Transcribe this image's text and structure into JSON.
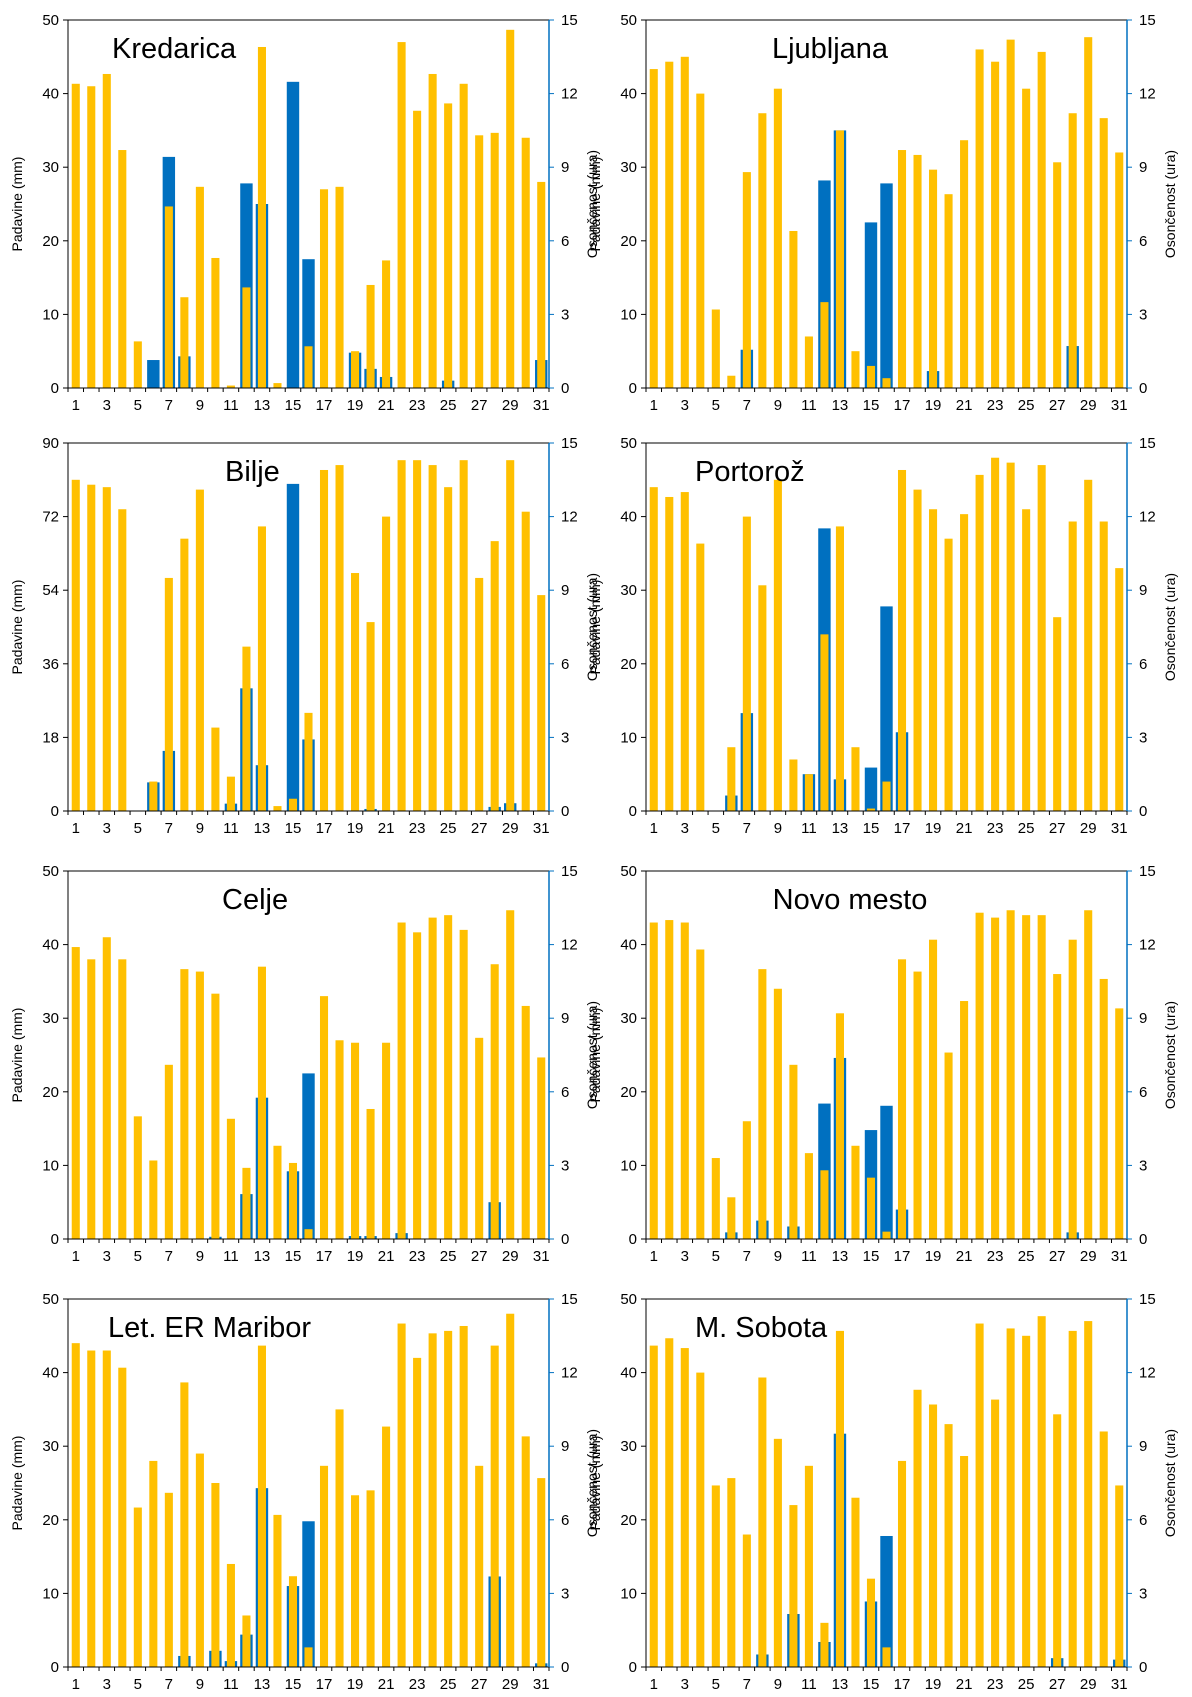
{
  "colors": {
    "precipitation": "#0070C0",
    "sunshine": "#FFC000",
    "frame": "#000000"
  },
  "chart_data": [
    {
      "type": "bar",
      "title": "Kredarica",
      "ylabel": "Padavine (mm)",
      "y2label": "Osončenost (ura)",
      "ylim": [
        0,
        50
      ],
      "yticks": [
        0,
        10,
        20,
        30,
        40,
        50
      ],
      "y2lim": [
        0,
        15
      ],
      "y2ticks": [
        0,
        3,
        6,
        9,
        12,
        15
      ],
      "x_ticks": [
        "1",
        "3",
        "5",
        "7",
        "9",
        "11",
        "13",
        "15",
        "17",
        "19",
        "21",
        "23",
        "25",
        "27",
        "29",
        "31"
      ],
      "series": [
        {
          "name": "Padavine",
          "axis": "left",
          "values": [
            0,
            0,
            0,
            0,
            0,
            3.8,
            31.4,
            4.3,
            0,
            0,
            0,
            27.8,
            25,
            0,
            41.6,
            17.5,
            0,
            0,
            4.8,
            2.6,
            1.5,
            0,
            0,
            0,
            1,
            0,
            0,
            0,
            0,
            0,
            3.8
          ]
        },
        {
          "name": "Osončenost",
          "axis": "right",
          "values": [
            12.4,
            12.3,
            12.8,
            9.7,
            1.9,
            0,
            7.4,
            3.7,
            8.2,
            5.3,
            0.1,
            4.1,
            13.9,
            0.2,
            0,
            1.7,
            8.1,
            8.2,
            1.5,
            4.2,
            5.2,
            14.1,
            11.3,
            12.8,
            11.6,
            12.4,
            10.3,
            10.4,
            14.6,
            10.2,
            8.4
          ]
        }
      ]
    },
    {
      "type": "bar",
      "title": "Ljubljana",
      "ylabel": "Padavine (mm)",
      "y2label": "Osončenost (ura)",
      "ylim": [
        0,
        50
      ],
      "yticks": [
        0,
        10,
        20,
        30,
        40,
        50
      ],
      "y2lim": [
        0,
        15
      ],
      "y2ticks": [
        0,
        3,
        6,
        9,
        12,
        15
      ],
      "x_ticks": [
        "1",
        "3",
        "5",
        "7",
        "9",
        "11",
        "13",
        "15",
        "17",
        "19",
        "21",
        "23",
        "25",
        "27",
        "29",
        "31"
      ],
      "series": [
        {
          "name": "Padavine",
          "axis": "left",
          "values": [
            0,
            0,
            0,
            0,
            0,
            0,
            5.2,
            0,
            0,
            0,
            0,
            28.2,
            35,
            0,
            22.5,
            27.8,
            0,
            0,
            2.3,
            0,
            0,
            0,
            0,
            0,
            0,
            0,
            0,
            5.7,
            0,
            0,
            0
          ]
        },
        {
          "name": "Osončenost",
          "axis": "right",
          "values": [
            13,
            13.3,
            13.5,
            12,
            3.2,
            0.5,
            8.8,
            11.2,
            12.2,
            6.4,
            2.1,
            3.5,
            10.5,
            1.5,
            0.9,
            0.4,
            9.7,
            9.5,
            8.9,
            7.9,
            10.1,
            13.8,
            13.3,
            14.2,
            12.2,
            13.7,
            9.2,
            11.2,
            14.3,
            11,
            9.6
          ]
        }
      ]
    },
    {
      "type": "bar",
      "title": "Bilje",
      "ylabel": "Padavine (mm)",
      "y2label": "Osončenost (ura)",
      "ylim": [
        0,
        90
      ],
      "yticks": [
        0,
        18,
        36,
        54,
        72,
        90
      ],
      "y2lim": [
        0,
        15
      ],
      "y2ticks": [
        0,
        3,
        6,
        9,
        12,
        15
      ],
      "x_ticks": [
        "1",
        "3",
        "5",
        "7",
        "9",
        "11",
        "13",
        "15",
        "17",
        "19",
        "21",
        "23",
        "25",
        "27",
        "29",
        "31"
      ],
      "series": [
        {
          "name": "Padavine",
          "axis": "left",
          "values": [
            0,
            0,
            0,
            0,
            0,
            7,
            14.7,
            0,
            0,
            0,
            1.8,
            30,
            11.2,
            0,
            80,
            17.5,
            0,
            0,
            0,
            0.5,
            0,
            0,
            0,
            0,
            0,
            0,
            0,
            1,
            1.9,
            0,
            0
          ]
        },
        {
          "name": "Osončenost",
          "axis": "right",
          "values": [
            13.5,
            13.3,
            13.2,
            12.3,
            0,
            1.2,
            9.5,
            11.1,
            13.1,
            3.4,
            1.4,
            6.7,
            11.6,
            0.2,
            0.5,
            4,
            13.9,
            14.1,
            9.7,
            7.7,
            12,
            14.3,
            14.3,
            14.1,
            13.2,
            14.3,
            9.5,
            11,
            14.3,
            12.2,
            8.8
          ]
        }
      ]
    },
    {
      "type": "bar",
      "title": "Portorož",
      "ylabel": "Padavine (mm)",
      "y2label": "Osončenost (ura)",
      "ylim": [
        0,
        50
      ],
      "yticks": [
        0,
        10,
        20,
        30,
        40,
        50
      ],
      "y2lim": [
        0,
        15
      ],
      "y2ticks": [
        0,
        3,
        6,
        9,
        12,
        15
      ],
      "x_ticks": [
        "1",
        "3",
        "5",
        "7",
        "9",
        "11",
        "13",
        "15",
        "17",
        "19",
        "21",
        "23",
        "25",
        "27",
        "29",
        "31"
      ],
      "series": [
        {
          "name": "Padavine",
          "axis": "left",
          "values": [
            0,
            0,
            0,
            0,
            0,
            2.1,
            13.3,
            0,
            0,
            0,
            5,
            38.4,
            4.3,
            0,
            5.9,
            27.8,
            10.7,
            0,
            0,
            0,
            0,
            0,
            0,
            0,
            0,
            0,
            0,
            0,
            0,
            0,
            0
          ]
        },
        {
          "name": "Osončenost",
          "axis": "right",
          "values": [
            13.2,
            12.8,
            13,
            10.9,
            0,
            2.6,
            12,
            9.2,
            13.5,
            2.1,
            1.5,
            7.2,
            11.6,
            2.6,
            0.1,
            1.2,
            13.9,
            13.1,
            12.3,
            11.1,
            12.1,
            13.7,
            14.4,
            14.2,
            12.3,
            14.1,
            7.9,
            11.8,
            13.5,
            11.8,
            9.9
          ]
        }
      ]
    },
    {
      "type": "bar",
      "title": "Celje",
      "ylabel": "Padavine (mm)",
      "y2label": "Osončenost (ura)",
      "ylim": [
        0,
        50
      ],
      "yticks": [
        0,
        10,
        20,
        30,
        40,
        50
      ],
      "y2lim": [
        0,
        15
      ],
      "y2ticks": [
        0,
        3,
        6,
        9,
        12,
        15
      ],
      "x_ticks": [
        "1",
        "3",
        "5",
        "7",
        "9",
        "11",
        "13",
        "15",
        "17",
        "19",
        "21",
        "23",
        "25",
        "27",
        "29",
        "31"
      ],
      "series": [
        {
          "name": "Padavine",
          "axis": "left",
          "values": [
            0,
            0,
            0,
            0,
            0,
            0,
            0,
            0,
            0,
            0.3,
            0,
            6.1,
            19.2,
            0,
            9.2,
            22.5,
            0,
            0,
            0.4,
            0.4,
            0,
            0.8,
            0,
            0,
            0,
            0,
            0,
            5,
            0,
            0,
            0
          ]
        },
        {
          "name": "Osončenost",
          "axis": "right",
          "values": [
            11.9,
            11.4,
            12.3,
            11.4,
            5,
            3.2,
            7.1,
            11,
            10.9,
            10,
            4.9,
            2.9,
            11.1,
            3.8,
            3.1,
            0.4,
            9.9,
            8.1,
            8,
            5.3,
            8,
            12.9,
            12.5,
            13.1,
            13.2,
            12.6,
            8.2,
            11.2,
            13.4,
            9.5,
            7.4
          ]
        }
      ]
    },
    {
      "type": "bar",
      "title": "Novo mesto",
      "ylabel": "Padavine (mm)",
      "y2label": "Osončenost (ura)",
      "ylim": [
        0,
        50
      ],
      "yticks": [
        0,
        10,
        20,
        30,
        40,
        50
      ],
      "y2lim": [
        0,
        15
      ],
      "y2ticks": [
        0,
        3,
        6,
        9,
        12,
        15
      ],
      "x_ticks": [
        "1",
        "3",
        "5",
        "7",
        "9",
        "11",
        "13",
        "15",
        "17",
        "19",
        "21",
        "23",
        "25",
        "27",
        "29",
        "31"
      ],
      "series": [
        {
          "name": "Padavine",
          "axis": "left",
          "values": [
            0,
            0,
            0,
            0,
            0,
            0.9,
            0,
            2.5,
            0,
            1.7,
            0,
            18.4,
            24.6,
            0,
            14.8,
            18.1,
            4,
            0,
            0,
            0,
            0,
            0,
            0,
            0,
            0,
            0,
            0,
            0.9,
            0,
            0,
            0
          ]
        },
        {
          "name": "Osončenost",
          "axis": "right",
          "values": [
            12.9,
            13,
            12.9,
            11.8,
            3.3,
            1.7,
            4.8,
            11,
            10.2,
            7.1,
            3.5,
            2.8,
            9.2,
            3.8,
            2.5,
            0.3,
            11.4,
            10.9,
            12.2,
            7.6,
            9.7,
            13.3,
            13.1,
            13.4,
            13.2,
            13.2,
            10.8,
            12.2,
            13.4,
            10.6,
            9.4
          ]
        }
      ]
    },
    {
      "type": "bar",
      "title": "Let. ER Maribor",
      "ylabel": "Padavine (mm)",
      "y2label": "Osončenost (ura)",
      "ylim": [
        0,
        50
      ],
      "yticks": [
        0,
        10,
        20,
        30,
        40,
        50
      ],
      "y2lim": [
        0,
        15
      ],
      "y2ticks": [
        0,
        3,
        6,
        9,
        12,
        15
      ],
      "x_ticks": [
        "1",
        "3",
        "5",
        "7",
        "9",
        "11",
        "13",
        "15",
        "17",
        "19",
        "21",
        "23",
        "25",
        "27",
        "29",
        "31"
      ],
      "series": [
        {
          "name": "Padavine",
          "axis": "left",
          "values": [
            0,
            0,
            0,
            0,
            0,
            0,
            0,
            1.5,
            0,
            2.2,
            0.8,
            4.4,
            24.3,
            0,
            11,
            19.8,
            0,
            0,
            0,
            0,
            0,
            0,
            0,
            0,
            0,
            0,
            0,
            12.3,
            0,
            0,
            0.5
          ]
        },
        {
          "name": "Osončenost",
          "axis": "right",
          "values": [
            13.2,
            12.9,
            12.9,
            12.2,
            6.5,
            8.4,
            7.1,
            11.6,
            8.7,
            7.5,
            4.2,
            2.1,
            13.1,
            6.2,
            3.7,
            0.8,
            8.2,
            10.5,
            7,
            7.2,
            9.8,
            14,
            12.6,
            13.6,
            13.7,
            13.9,
            8.2,
            13.1,
            14.4,
            9.4,
            7.7
          ]
        }
      ]
    },
    {
      "type": "bar",
      "title": "M. Sobota",
      "ylabel": "Padavine (mm)",
      "y2label": "Osončenost (ura)",
      "ylim": [
        0,
        50
      ],
      "yticks": [
        0,
        10,
        20,
        30,
        40,
        50
      ],
      "y2lim": [
        0,
        15
      ],
      "y2ticks": [
        0,
        3,
        6,
        9,
        12,
        15
      ],
      "x_ticks": [
        "1",
        "3",
        "5",
        "7",
        "9",
        "11",
        "13",
        "15",
        "17",
        "19",
        "21",
        "23",
        "25",
        "27",
        "29",
        "31"
      ],
      "series": [
        {
          "name": "Padavine",
          "axis": "left",
          "values": [
            0,
            0,
            0,
            0,
            0,
            0,
            0,
            1.7,
            0,
            7.2,
            0,
            3.4,
            31.7,
            0,
            8.9,
            17.8,
            0,
            0,
            0,
            0,
            0,
            0,
            0,
            0,
            0,
            0,
            1.2,
            0,
            0,
            0,
            1
          ]
        },
        {
          "name": "Osončenost",
          "axis": "right",
          "values": [
            13.1,
            13.4,
            13,
            12,
            7.4,
            7.7,
            5.4,
            11.8,
            9.3,
            6.6,
            8.2,
            1.8,
            13.7,
            6.9,
            3.6,
            0.8,
            8.4,
            11.3,
            10.7,
            9.9,
            8.6,
            14,
            10.9,
            13.8,
            13.5,
            14.3,
            10.3,
            13.7,
            14.1,
            9.6,
            7.4
          ]
        }
      ]
    }
  ]
}
